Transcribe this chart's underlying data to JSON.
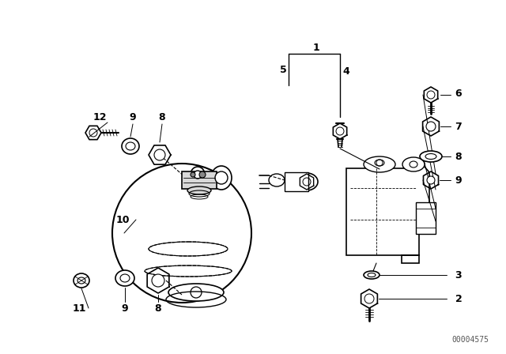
{
  "background_color": "#ffffff",
  "part_number": "00004575",
  "fig_width": 6.4,
  "fig_height": 4.48,
  "dpi": 100,
  "line_color": "#000000",
  "text_color": "#000000",
  "label_fontsize": 9,
  "partnum_fontsize": 7
}
